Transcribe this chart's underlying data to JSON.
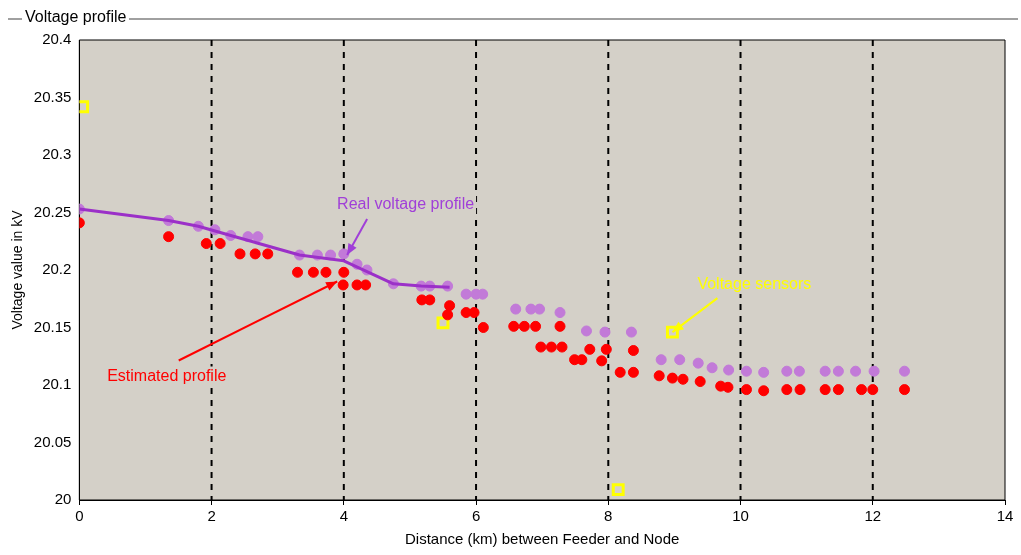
{
  "chart_data": {
    "type": "scatter",
    "title": "Voltage profile",
    "xlabel": "Distance (km) between Feeder and Node",
    "ylabel": "Voltage value in kV",
    "xlim": [
      0,
      14
    ],
    "xticks": [
      0,
      2,
      4,
      6,
      8,
      10,
      12,
      14
    ],
    "ylim": [
      20,
      20.4
    ],
    "yticks": [
      20,
      20.05,
      20.1,
      20.15,
      20.2,
      20.25,
      20.3,
      20.35,
      20.4
    ],
    "grid": "x",
    "legend": false,
    "annotations": [
      {
        "text": "Real voltage profile",
        "x": 4.05,
        "y": 20.213
      },
      {
        "text": "Estimated profile",
        "x": 3.9,
        "y": 20.19
      },
      {
        "text": "Voltage sensors",
        "x": 8.97,
        "y": 20.146
      }
    ],
    "series": [
      {
        "type": "line",
        "color": "#9b30c8",
        "marker": "none",
        "x": [
          0,
          1.35,
          1.8,
          2.29,
          3.33,
          4.0,
          4.75,
          5.17,
          5.6
        ],
        "values": [
          20.253,
          20.243,
          20.238,
          20.23,
          20.213,
          20.208,
          20.188,
          20.186,
          20.185
        ]
      },
      {
        "color": "#c27ad8",
        "marker": "circle",
        "x": [
          0,
          1.35,
          1.8,
          2.05,
          2.29,
          2.55,
          2.7,
          3.33,
          3.6,
          3.8,
          4.0,
          4.2,
          4.35,
          4.75,
          5.17,
          5.3,
          5.57,
          5.85,
          6.0,
          6.1,
          6.6,
          6.83,
          6.96,
          7.27,
          7.67,
          7.95,
          8.35,
          8.8,
          9.08,
          9.36,
          9.57,
          9.82,
          10.09,
          10.35,
          10.7,
          10.89,
          11.28,
          11.48,
          11.74,
          12.02,
          12.48
        ],
        "values": [
          20.253,
          20.243,
          20.238,
          20.235,
          20.23,
          20.229,
          20.229,
          20.213,
          20.213,
          20.213,
          20.214,
          20.205,
          20.2,
          20.188,
          20.186,
          20.186,
          20.186,
          20.179,
          20.179,
          20.179,
          20.166,
          20.166,
          20.166,
          20.163,
          20.147,
          20.146,
          20.146,
          20.122,
          20.122,
          20.119,
          20.115,
          20.113,
          20.112,
          20.111,
          20.112,
          20.112,
          20.112,
          20.112,
          20.112,
          20.112,
          20.112
        ]
      },
      {
        "color": "#ff0000",
        "marker": "circle",
        "x": [
          0,
          1.35,
          1.92,
          2.13,
          2.43,
          2.66,
          2.85,
          3.3,
          3.54,
          3.73,
          4.0,
          3.99,
          4.2,
          4.33,
          5.18,
          5.3,
          5.6,
          5.57,
          5.85,
          5.97,
          6.11,
          6.57,
          6.73,
          6.9,
          7.27,
          6.98,
          7.14,
          7.3,
          7.49,
          7.6,
          7.72,
          7.97,
          7.9,
          8.18,
          8.38,
          8.38,
          8.77,
          8.97,
          9.13,
          9.39,
          9.7,
          9.81,
          10.09,
          10.35,
          10.7,
          10.9,
          11.28,
          11.48,
          11.83,
          12.0,
          12.48
        ],
        "values": [
          20.241,
          20.229,
          20.223,
          20.223,
          20.214,
          20.214,
          20.214,
          20.198,
          20.198,
          20.198,
          20.198,
          20.187,
          20.187,
          20.187,
          20.174,
          20.174,
          20.169,
          20.161,
          20.163,
          20.163,
          20.15,
          20.151,
          20.151,
          20.151,
          20.151,
          20.133,
          20.133,
          20.133,
          20.122,
          20.122,
          20.131,
          20.131,
          20.121,
          20.111,
          20.111,
          20.13,
          20.108,
          20.106,
          20.105,
          20.103,
          20.099,
          20.098,
          20.096,
          20.095,
          20.096,
          20.096,
          20.096,
          20.096,
          20.096,
          20.096,
          20.096
        ]
      },
      {
        "color": "#ffff00",
        "marker": "square",
        "x": [
          0.05,
          5.5,
          8.97,
          8.15
        ],
        "values": [
          20.342,
          20.154,
          20.146,
          20.009
        ]
      }
    ]
  }
}
